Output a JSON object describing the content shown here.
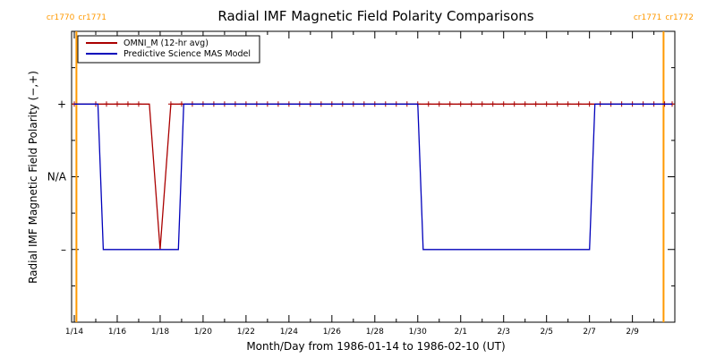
{
  "chart_data": {
    "type": "line",
    "title": "Radial IMF Magnetic Field Polarity Comparisons",
    "xlabel": "Month/Day from 1986-01-14 to 1986-02-10 (UT)",
    "ylabel": "Radial IMF Magnetic Field Polarity (−,+)",
    "x_start_date": "1986-01-14",
    "xlim_days": [
      0,
      27.85
    ],
    "ylim": [
      -2,
      2
    ],
    "x_ticks": [
      {
        "day": 0,
        "label": "1/14"
      },
      {
        "day": 2,
        "label": "1/16"
      },
      {
        "day": 4,
        "label": "1/18"
      },
      {
        "day": 6,
        "label": "1/20"
      },
      {
        "day": 8,
        "label": "1/22"
      },
      {
        "day": 10,
        "label": "1/24"
      },
      {
        "day": 12,
        "label": "1/26"
      },
      {
        "day": 14,
        "label": "1/28"
      },
      {
        "day": 16,
        "label": "1/30"
      },
      {
        "day": 18,
        "label": "2/1"
      },
      {
        "day": 20,
        "label": "2/3"
      },
      {
        "day": 22,
        "label": "2/5"
      },
      {
        "day": 24,
        "label": "2/7"
      },
      {
        "day": 26,
        "label": "2/9"
      }
    ],
    "y_ticks": [
      {
        "value": 1,
        "label": "+"
      },
      {
        "value": 0,
        "label": "N/A"
      },
      {
        "value": -1,
        "label": "–"
      }
    ],
    "carrington_markers": [
      {
        "day": 0.1,
        "label_left": "cr1770",
        "label_right": "cr1771"
      },
      {
        "day": 27.45,
        "label_left": "cr1771",
        "label_right": "cr1772"
      }
    ],
    "series": [
      {
        "name": "OMNI_M (12-hr avg)",
        "color": "#aa0000",
        "marker": "+",
        "points": [
          [
            0.0,
            1
          ],
          [
            0.5,
            1
          ],
          [
            1.0,
            1
          ],
          [
            1.5,
            1
          ],
          [
            2.0,
            1
          ],
          [
            2.5,
            1
          ],
          [
            3.0,
            1
          ],
          [
            3.5,
            1
          ],
          [
            4.0,
            -1
          ],
          [
            4.5,
            1
          ],
          [
            5.0,
            1
          ],
          [
            5.5,
            1
          ],
          [
            6.0,
            1
          ],
          [
            6.5,
            1
          ],
          [
            7.0,
            1
          ],
          [
            7.5,
            1
          ],
          [
            8.0,
            1
          ],
          [
            8.5,
            1
          ],
          [
            9.0,
            1
          ],
          [
            9.5,
            1
          ],
          [
            10.0,
            1
          ],
          [
            10.5,
            1
          ],
          [
            11.0,
            1
          ],
          [
            11.5,
            1
          ],
          [
            12.0,
            1
          ],
          [
            12.5,
            1
          ],
          [
            13.0,
            1
          ],
          [
            13.5,
            1
          ],
          [
            14.0,
            1
          ],
          [
            14.5,
            1
          ],
          [
            15.0,
            1
          ],
          [
            15.5,
            1
          ],
          [
            16.0,
            1
          ],
          [
            16.5,
            1
          ],
          [
            17.0,
            1
          ],
          [
            17.5,
            1
          ],
          [
            18.0,
            1
          ],
          [
            18.5,
            1
          ],
          [
            19.0,
            1
          ],
          [
            19.5,
            1
          ],
          [
            20.0,
            1
          ],
          [
            20.5,
            1
          ],
          [
            21.0,
            1
          ],
          [
            21.5,
            1
          ],
          [
            22.0,
            1
          ],
          [
            22.5,
            1
          ],
          [
            23.0,
            1
          ],
          [
            23.5,
            1
          ],
          [
            24.0,
            1
          ],
          [
            24.5,
            1
          ],
          [
            25.0,
            1
          ],
          [
            25.5,
            1
          ],
          [
            26.0,
            1
          ],
          [
            26.5,
            1
          ],
          [
            27.0,
            1
          ],
          [
            27.5,
            1
          ],
          [
            27.85,
            1
          ]
        ],
        "markers_days": [
          0.0,
          1.0,
          1.5,
          2.0,
          2.5,
          3.0,
          4.5,
          5.0,
          5.5,
          6.0,
          6.5,
          7.0,
          7.5,
          8.0,
          8.5,
          9.0,
          9.5,
          10.0,
          10.5,
          11.0,
          11.5,
          12.0,
          12.5,
          13.0,
          13.5,
          14.0,
          14.5,
          15.0,
          15.5,
          16.0,
          16.5,
          17.0,
          17.5,
          18.0,
          18.5,
          19.0,
          19.5,
          20.0,
          20.5,
          21.0,
          21.5,
          22.0,
          22.5,
          23.0,
          23.5,
          24.0,
          24.5,
          25.0,
          25.5,
          26.0,
          26.5,
          27.0,
          27.5,
          27.85
        ]
      },
      {
        "name": "Predictive Science MAS Model",
        "color": "#0000bb",
        "points": [
          [
            0.0,
            1
          ],
          [
            1.1,
            1
          ],
          [
            1.35,
            -1
          ],
          [
            4.85,
            -1
          ],
          [
            5.1,
            1
          ],
          [
            16.0,
            1
          ],
          [
            16.25,
            -1
          ],
          [
            24.0,
            -1
          ],
          [
            24.25,
            1
          ],
          [
            27.85,
            1
          ]
        ]
      }
    ]
  }
}
